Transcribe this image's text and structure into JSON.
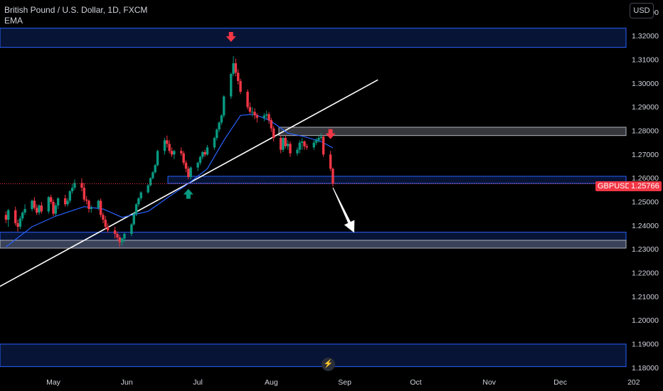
{
  "header": {
    "symbol_title": "British Pound / U.S. Dollar, 1D, FXCM",
    "indicator": "EMA",
    "currency_button": "USD"
  },
  "price_tag": {
    "symbol": "GBPUSD",
    "value": "1.25766"
  },
  "replay_icon": "lightning-icon",
  "colors": {
    "background": "#000000",
    "up_candle": "#089981",
    "down_candle": "#f23645",
    "ema": "#2962ff",
    "zone_fill": "#0c2461",
    "zone_border": "#2962ff",
    "trendline": "#ffffff"
  },
  "chart_data": {
    "type": "candlestick",
    "y_axis": {
      "min": 1.177,
      "max": 1.335,
      "ticks": [
        "1.33000",
        "1.32000",
        "1.31000",
        "1.30000",
        "1.29000",
        "1.28000",
        "1.27000",
        "1.26000",
        "1.25000",
        "1.24000",
        "1.23000",
        "1.22000",
        "1.21000",
        "1.20000",
        "1.19000",
        "1.18000"
      ],
      "tick_values": [
        1.33,
        1.32,
        1.31,
        1.3,
        1.29,
        1.28,
        1.27,
        1.26,
        1.25,
        1.24,
        1.23,
        1.22,
        1.21,
        1.2,
        1.19,
        1.18
      ]
    },
    "x_axis": {
      "labels": [
        "May",
        "Jun",
        "Jul",
        "Aug",
        "Sep",
        "Oct",
        "Nov",
        "Dec",
        "202"
      ],
      "label_dates": [
        "2024-05-01",
        "2024-06-01",
        "2024-07-01",
        "2024-08-01",
        "2024-09-01",
        "2024-10-01",
        "2024-11-01",
        "2024-12-01",
        "2025-01-01"
      ]
    },
    "series": [
      {
        "kind": "candles",
        "dates": [
          "2024-04-11",
          "2024-04-12",
          "2024-04-15",
          "2024-04-16",
          "2024-04-17",
          "2024-04-18",
          "2024-04-19",
          "2024-04-22",
          "2024-04-23",
          "2024-04-24",
          "2024-04-25",
          "2024-04-26",
          "2024-04-29",
          "2024-04-30",
          "2024-05-01",
          "2024-05-02",
          "2024-05-03",
          "2024-05-06",
          "2024-05-07",
          "2024-05-08",
          "2024-05-09",
          "2024-05-10",
          "2024-05-13",
          "2024-05-14",
          "2024-05-15",
          "2024-05-16",
          "2024-05-17",
          "2024-05-20",
          "2024-05-21",
          "2024-05-22",
          "2024-05-23",
          "2024-05-24",
          "2024-05-27",
          "2024-05-28",
          "2024-05-29",
          "2024-05-30",
          "2024-05-31",
          "2024-06-03",
          "2024-06-04",
          "2024-06-05",
          "2024-06-06",
          "2024-06-07",
          "2024-06-10",
          "2024-06-11",
          "2024-06-12",
          "2024-06-13",
          "2024-06-14",
          "2024-06-17",
          "2024-06-18",
          "2024-06-19",
          "2024-06-20",
          "2024-06-21",
          "2024-06-24",
          "2024-06-25",
          "2024-06-26",
          "2024-06-27",
          "2024-06-28",
          "2024-07-01",
          "2024-07-02",
          "2024-07-03",
          "2024-07-04",
          "2024-07-05",
          "2024-07-08",
          "2024-07-09",
          "2024-07-10",
          "2024-07-11",
          "2024-07-12",
          "2024-07-15",
          "2024-07-16",
          "2024-07-17",
          "2024-07-18",
          "2024-07-19",
          "2024-07-22",
          "2024-07-23",
          "2024-07-24",
          "2024-07-25",
          "2024-07-26",
          "2024-07-29",
          "2024-07-30",
          "2024-07-31",
          "2024-08-01",
          "2024-08-02",
          "2024-08-05",
          "2024-08-06",
          "2024-08-07",
          "2024-08-08",
          "2024-08-09",
          "2024-08-12",
          "2024-08-13",
          "2024-08-14",
          "2024-08-15",
          "2024-08-16",
          "2024-08-19",
          "2024-08-20",
          "2024-08-21",
          "2024-08-22",
          "2024-08-23",
          "2024-08-26",
          "2024-08-27"
        ],
        "open": [
          1.2445,
          1.2425,
          1.2465,
          1.241,
          1.2395,
          1.243,
          1.2455,
          1.247,
          1.2505,
          1.2475,
          1.2455,
          1.2485,
          1.246,
          1.252,
          1.25,
          1.245,
          1.2485,
          1.2515,
          1.249,
          1.2505,
          1.2545,
          1.256,
          1.258,
          1.256,
          1.251,
          1.2505,
          1.247,
          1.2475,
          1.2505,
          1.2445,
          1.2425,
          1.2395,
          1.238,
          1.2365,
          1.235,
          1.233,
          1.2345,
          1.2365,
          1.2405,
          1.245,
          1.249,
          1.2515,
          1.254,
          1.257,
          1.26,
          1.2625,
          1.2655,
          1.2715,
          1.276,
          1.2745,
          1.2715,
          1.27,
          1.2715,
          1.2705,
          1.2665,
          1.264,
          1.2605,
          1.2645,
          1.2665,
          1.269,
          1.271,
          1.27,
          1.273,
          1.277,
          1.2805,
          1.2835,
          1.2865,
          1.2945,
          1.304,
          1.3085,
          1.3045,
          1.301,
          1.2965,
          1.29,
          1.288,
          1.288,
          1.2865,
          1.2855,
          1.2865,
          1.287,
          1.2845,
          1.281,
          1.277,
          1.272,
          1.277,
          1.2735,
          1.2745,
          1.2705,
          1.272,
          1.275,
          1.2755,
          1.2735,
          1.273,
          1.275,
          1.276,
          1.277,
          1.2775,
          1.27,
          1.264
        ],
        "high": [
          1.246,
          1.247,
          1.248,
          1.2425,
          1.244,
          1.246,
          1.249,
          1.251,
          1.252,
          1.249,
          1.249,
          1.25,
          1.2525,
          1.253,
          1.251,
          1.2495,
          1.252,
          1.253,
          1.2515,
          1.255,
          1.2575,
          1.2595,
          1.26,
          1.258,
          1.2525,
          1.251,
          1.2485,
          1.251,
          1.2515,
          1.2455,
          1.244,
          1.241,
          1.2395,
          1.2375,
          1.236,
          1.235,
          1.237,
          1.241,
          1.2455,
          1.2495,
          1.252,
          1.2545,
          1.2575,
          1.2605,
          1.263,
          1.266,
          1.272,
          1.277,
          1.278,
          1.276,
          1.273,
          1.272,
          1.273,
          1.2715,
          1.2675,
          1.265,
          1.265,
          1.267,
          1.2695,
          1.2715,
          1.272,
          1.274,
          1.2775,
          1.281,
          1.284,
          1.287,
          1.295,
          1.3045,
          1.3115,
          1.3105,
          1.306,
          1.302,
          1.2975,
          1.292,
          1.29,
          1.2895,
          1.2875,
          1.2875,
          1.2885,
          1.288,
          1.2855,
          1.282,
          1.278,
          1.2775,
          1.278,
          1.276,
          1.2755,
          1.273,
          1.276,
          1.277,
          1.276,
          1.2745,
          1.276,
          1.277,
          1.278,
          1.279,
          1.278,
          1.2715,
          1.2645
        ],
        "low": [
          1.241,
          1.2395,
          1.24,
          1.2375,
          1.2385,
          1.242,
          1.2445,
          1.246,
          1.2465,
          1.2445,
          1.2445,
          1.245,
          1.245,
          1.249,
          1.244,
          1.244,
          1.247,
          1.248,
          1.248,
          1.2495,
          1.2535,
          1.255,
          1.2545,
          1.25,
          1.249,
          1.2455,
          1.2455,
          1.2465,
          1.2435,
          1.241,
          1.2385,
          1.237,
          1.2345,
          1.234,
          1.231,
          1.2315,
          1.233,
          1.2355,
          1.24,
          1.244,
          1.248,
          1.2505,
          1.2535,
          1.2565,
          1.2595,
          1.262,
          1.265,
          1.27,
          1.273,
          1.2705,
          1.269,
          1.268,
          1.2695,
          1.2655,
          1.2625,
          1.2595,
          1.2595,
          1.263,
          1.2655,
          1.268,
          1.269,
          1.2695,
          1.272,
          1.276,
          1.2795,
          1.2825,
          1.2855,
          1.2935,
          1.303,
          1.303,
          1.2995,
          1.2955,
          1.289,
          1.287,
          1.286,
          1.285,
          1.2835,
          1.284,
          1.285,
          1.283,
          1.2795,
          1.2755,
          1.2705,
          1.271,
          1.2725,
          1.272,
          1.269,
          1.2695,
          1.2705,
          1.272,
          1.272,
          1.272,
          1.272,
          1.274,
          1.275,
          1.276,
          1.269,
          1.263,
          1.2565
        ],
        "close": [
          1.2425,
          1.2465,
          1.241,
          1.2395,
          1.243,
          1.2455,
          1.247,
          1.2505,
          1.2475,
          1.2455,
          1.2485,
          1.246,
          1.252,
          1.25,
          1.245,
          1.2485,
          1.2515,
          1.249,
          1.2505,
          1.2545,
          1.256,
          1.258,
          1.256,
          1.251,
          1.2505,
          1.247,
          1.2475,
          1.2505,
          1.2445,
          1.2425,
          1.2395,
          1.238,
          1.2365,
          1.235,
          1.233,
          1.2345,
          1.2365,
          1.2405,
          1.245,
          1.249,
          1.2515,
          1.254,
          1.257,
          1.26,
          1.2625,
          1.2655,
          1.2715,
          1.276,
          1.2745,
          1.2715,
          1.27,
          1.2715,
          1.2705,
          1.2665,
          1.264,
          1.2605,
          1.2645,
          1.2665,
          1.269,
          1.271,
          1.27,
          1.273,
          1.277,
          1.2805,
          1.2835,
          1.2865,
          1.2945,
          1.304,
          1.3085,
          1.3045,
          1.301,
          1.2965,
          1.29,
          1.288,
          1.288,
          1.2865,
          1.2855,
          1.2865,
          1.287,
          1.2845,
          1.281,
          1.277,
          1.272,
          1.277,
          1.2735,
          1.2745,
          1.2705,
          1.272,
          1.275,
          1.2755,
          1.2735,
          1.273,
          1.275,
          1.276,
          1.277,
          1.2775,
          1.27,
          1.264,
          1.2577
        ]
      },
      {
        "kind": "line",
        "name": "EMA",
        "x": [
          "2024-04-11",
          "2024-04-22",
          "2024-05-02",
          "2024-05-14",
          "2024-05-22",
          "2024-05-30",
          "2024-06-10",
          "2024-06-20",
          "2024-06-26",
          "2024-07-05",
          "2024-07-12",
          "2024-07-19",
          "2024-07-25",
          "2024-08-01",
          "2024-08-08",
          "2024-08-15",
          "2024-08-22",
          "2024-08-27"
        ],
        "y": [
          1.231,
          1.2395,
          1.244,
          1.248,
          1.247,
          1.2435,
          1.246,
          1.253,
          1.257,
          1.264,
          1.276,
          1.2865,
          1.287,
          1.284,
          1.279,
          1.2775,
          1.2755,
          1.2728
        ]
      }
    ],
    "zones": [
      {
        "y1": 1.3152,
        "y2": 1.3233,
        "style": "blue"
      },
      {
        "y1": 1.278,
        "y2": 1.2815,
        "style": "gray"
      },
      {
        "y1": 1.2578,
        "y2": 1.2608,
        "style": "blue"
      },
      {
        "y1": 1.2305,
        "y2": 1.2372,
        "style": "blue"
      },
      {
        "y1": 1.2305,
        "y2": 1.2338,
        "style": "gray"
      },
      {
        "y1": 1.1805,
        "y2": 1.19,
        "style": "blue"
      }
    ],
    "trendline": {
      "x": [
        "2024-03-15",
        "2024-09-15"
      ],
      "y": [
        1.201,
        1.3015
      ]
    },
    "arrows": [
      {
        "direction": "down",
        "date": "2024-07-15",
        "price": 1.319,
        "color": "#f23645"
      },
      {
        "direction": "up",
        "date": "2024-06-27",
        "price": 1.254,
        "color": "#089981"
      },
      {
        "direction": "down",
        "date": "2024-08-26",
        "price": 1.278,
        "color": "#f23645"
      }
    ],
    "projection": {
      "from": {
        "date": "2024-08-27",
        "price": 1.256
      },
      "to": {
        "date": "2024-09-05",
        "price": 1.237
      }
    },
    "last_price": 1.25766,
    "grid": false
  }
}
